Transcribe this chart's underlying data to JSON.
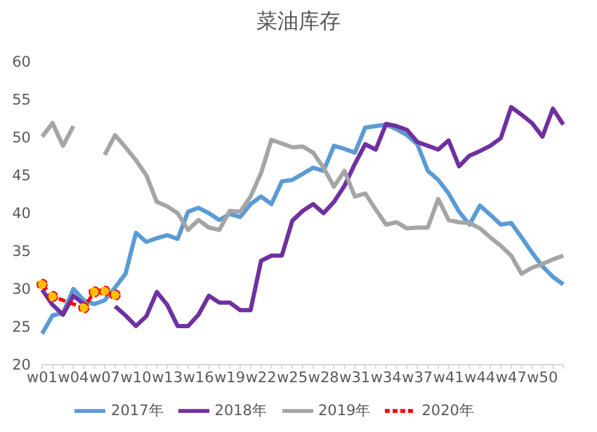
{
  "chart_data": {
    "type": "line",
    "title": "菜油库存",
    "categories": [
      "w01",
      null,
      null,
      "w04",
      null,
      null,
      "w07",
      null,
      null,
      "w10",
      null,
      null,
      "w13",
      null,
      null,
      "w16",
      null,
      null,
      "w19",
      null,
      null,
      "w22",
      null,
      null,
      "w25",
      null,
      null,
      "w28",
      null,
      null,
      "w31",
      null,
      null,
      "w34",
      null,
      null,
      "w37",
      null,
      null,
      "w41",
      null,
      null,
      "w44",
      null,
      null,
      "w47",
      null,
      null,
      "w50",
      null,
      null
    ],
    "ylim": [
      20,
      60
    ],
    "yticks": [
      20,
      25,
      30,
      35,
      40,
      45,
      50,
      55,
      60
    ],
    "grid": false,
    "legend": "bottom",
    "marker": "none",
    "line_style": "solid",
    "series": [
      {
        "name": "2017年",
        "color": "#5b9bd5",
        "values": [
          24.1,
          26.5,
          26.8,
          30,
          28.5,
          28,
          28.5,
          30.2,
          32,
          37.4,
          36.2,
          36.7,
          37.1,
          36.6,
          40.2,
          40.7,
          40,
          39.1,
          39.9,
          39.5,
          41.2,
          42.2,
          41.2,
          44.2,
          44.4,
          45.2,
          46,
          45.6,
          48.9,
          48.5,
          48,
          51.3,
          51.5,
          51.7,
          51.1,
          50.3,
          49.1,
          45.6,
          44.4,
          42.6,
          40.2,
          38.5,
          41,
          39.8,
          38.5,
          38.7,
          36.8,
          34.8,
          33,
          31.6,
          30.6
        ]
      },
      {
        "name": "2018年",
        "color": "#7030a0",
        "values": [
          29.9,
          27.9,
          26.6,
          29.1,
          28,
          null,
          null,
          27.7,
          26.5,
          25.1,
          26.4,
          29.6,
          27.9,
          25.1,
          25.1,
          26.6,
          29.1,
          28.2,
          28.2,
          27.2,
          27.2,
          33.7,
          34.4,
          34.4,
          39,
          40.3,
          41.2,
          40,
          41.5,
          43.6,
          46.5,
          49.1,
          48.4,
          51.8,
          51.5,
          51,
          49.4,
          48.9,
          48.4,
          49.6,
          46.2,
          47.6,
          48.2,
          48.9,
          49.9,
          54,
          53,
          51.9,
          50.1,
          53.8,
          51.7
        ]
      },
      {
        "name": "2019年",
        "color": "#a5a5a5",
        "values": [
          50.1,
          51.9,
          48.9,
          51.5,
          null,
          null,
          47.7,
          50.3,
          48.7,
          47,
          45,
          41.5,
          40.9,
          40,
          37.8,
          39.1,
          38.1,
          37.8,
          40.3,
          40.2,
          42.2,
          45.3,
          49.7,
          49.2,
          48.7,
          48.8,
          48,
          46,
          43.5,
          45.6,
          42.2,
          42.6,
          40.5,
          38.5,
          38.8,
          38,
          38.1,
          38.1,
          41.9,
          39.1,
          38.8,
          38.7,
          38,
          36.8,
          35.7,
          34.4,
          32,
          32.8,
          33.3,
          33.9,
          34.4
        ]
      },
      {
        "name": "2020年",
        "color": "#ff0000",
        "marker": "circle",
        "line_style": "dashed",
        "values": [
          30.6,
          29,
          null,
          null,
          27.5,
          29.6,
          29.7,
          29.2,
          null,
          null,
          null,
          null,
          null,
          null,
          null,
          null,
          null,
          null,
          null,
          null,
          null,
          null,
          null,
          null,
          null,
          null,
          null,
          null,
          null,
          null,
          null,
          null,
          null,
          null,
          null,
          null,
          null,
          null,
          null,
          null,
          null,
          null,
          null,
          null,
          null,
          null,
          null,
          null,
          null,
          null,
          null
        ]
      }
    ]
  }
}
